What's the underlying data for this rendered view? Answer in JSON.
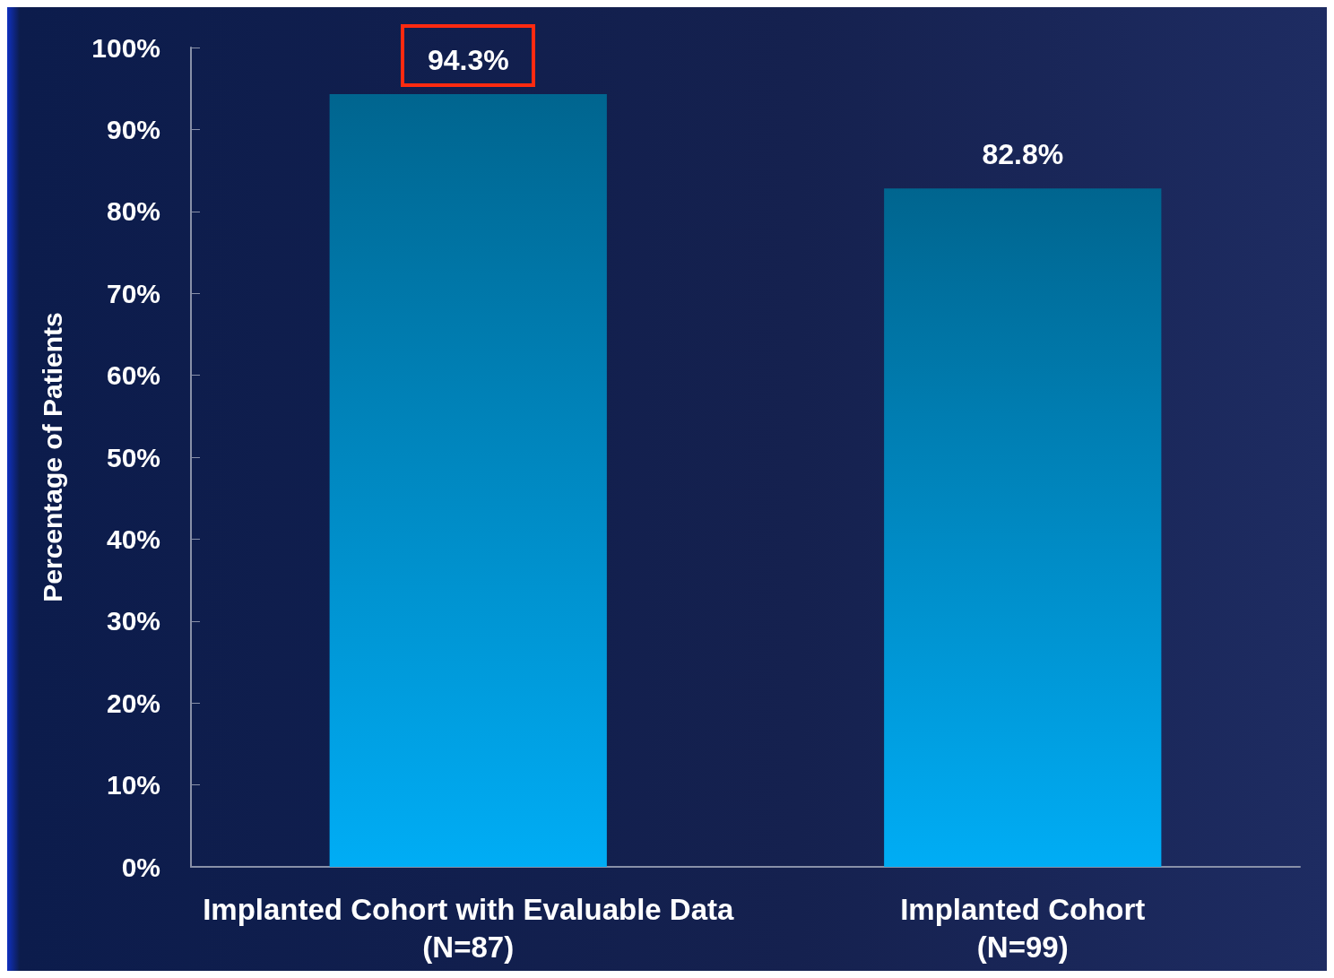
{
  "chart_data": {
    "type": "bar",
    "ylabel": "Percentage of Patients",
    "categories": [
      "Implanted Cohort with Evaluable Data\n(N=87)",
      "Implanted Cohort\n(N=99)"
    ],
    "values": [
      94.3,
      82.8
    ],
    "value_labels": [
      "94.3%",
      "82.8%"
    ],
    "color": "#0099d8",
    "ylim": [
      0,
      100
    ],
    "yticks": [
      {
        "value": 0,
        "label": "0%"
      },
      {
        "value": 10,
        "label": "10%"
      },
      {
        "value": 20,
        "label": "20%"
      },
      {
        "value": 30,
        "label": "30%"
      },
      {
        "value": 40,
        "label": "40%"
      },
      {
        "value": 50,
        "label": "50%"
      },
      {
        "value": 60,
        "label": "60%"
      },
      {
        "value": 70,
        "label": "70%"
      },
      {
        "value": 80,
        "label": "80%"
      },
      {
        "value": 90,
        "label": "90%"
      },
      {
        "value": 100,
        "label": "100%"
      }
    ],
    "grid": false
  }
}
